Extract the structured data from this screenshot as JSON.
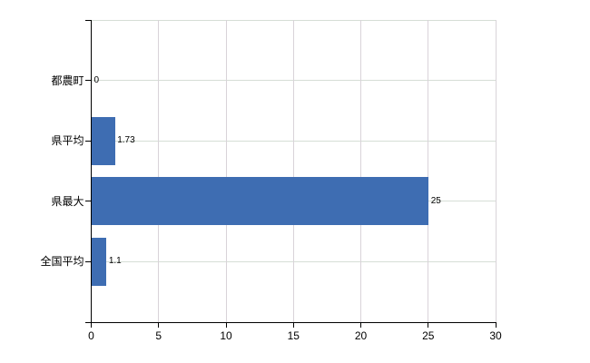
{
  "chart_data": {
    "type": "bar",
    "orientation": "horizontal",
    "title": "",
    "xlabel": "",
    "ylabel": "",
    "categories": [
      "都農町",
      "県平均",
      "県最大",
      "全国平均"
    ],
    "values": [
      0,
      1.73,
      25,
      1.1
    ],
    "value_labels": [
      "0",
      "1.73",
      "25",
      "1.1"
    ],
    "xlim": [
      0,
      30
    ],
    "xticks": [
      0,
      5,
      10,
      15,
      20,
      25,
      30
    ],
    "xtick_labels": [
      "0",
      "5",
      "10",
      "15",
      "20",
      "25",
      "30"
    ],
    "grid": "on",
    "legend": "none",
    "colors": {
      "bar": "#3e6db2",
      "axis": "#000000",
      "gridline_horizontal": "#d6ded6",
      "gridline_vertical": "#d9d3d9",
      "background": "#ffffff",
      "label_text": "#000000"
    }
  }
}
